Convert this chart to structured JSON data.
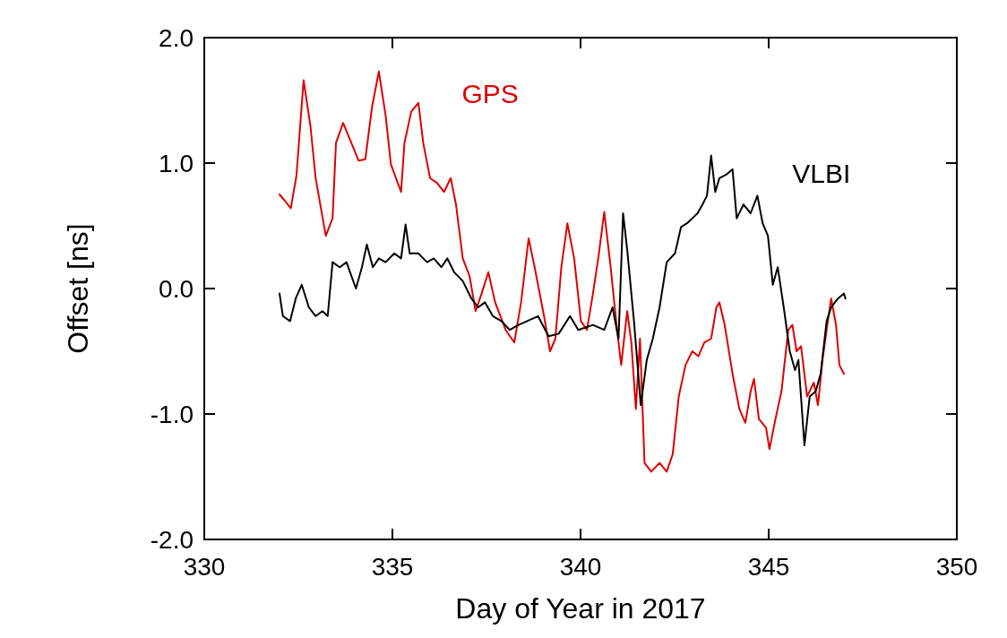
{
  "chart_data": {
    "type": "line",
    "xlabel": "Day of Year in 2017",
    "ylabel": "Offset [ns]",
    "xlim": [
      330,
      350
    ],
    "xticks": [
      330,
      335,
      340,
      345,
      350
    ],
    "ylim": [
      -2,
      2
    ],
    "yticks": [
      {
        "value": -2,
        "label": "-2.0"
      },
      {
        "value": -1,
        "label": "-1.0"
      },
      {
        "value": 0,
        "label": "0.0"
      },
      {
        "value": 1,
        "label": "1.0"
      },
      {
        "value": 2,
        "label": "2.0"
      }
    ],
    "grid": false,
    "line_style": "solid",
    "marker": "none",
    "series": [
      {
        "name": "GPS",
        "color": "#dd0000",
        "x": [
          332.0,
          332.14,
          332.3,
          332.45,
          332.64,
          332.82,
          332.96,
          333.23,
          333.41,
          333.5,
          333.69,
          334.1,
          334.28,
          334.46,
          334.64,
          334.82,
          334.96,
          335.23,
          335.32,
          335.5,
          335.69,
          335.82,
          336.0,
          336.19,
          336.37,
          336.55,
          336.69,
          336.87,
          337.05,
          337.21,
          337.37,
          337.55,
          337.73,
          338.01,
          338.24,
          338.42,
          338.62,
          338.78,
          339.03,
          339.19,
          339.33,
          339.49,
          339.65,
          339.83,
          340.01,
          340.17,
          340.33,
          340.47,
          340.63,
          340.8,
          340.97,
          341.08,
          341.24,
          341.35,
          341.47,
          341.58,
          341.7,
          341.88,
          342.1,
          342.29,
          342.45,
          342.61,
          342.79,
          342.97,
          343.13,
          343.29,
          343.47,
          343.61,
          343.69,
          343.83,
          344.04,
          344.22,
          344.38,
          344.52,
          344.61,
          344.74,
          344.93,
          345.02,
          345.18,
          345.34,
          345.52,
          345.63,
          345.74,
          345.86,
          346.02,
          346.2,
          346.31,
          346.43,
          346.54,
          346.66,
          346.79,
          346.88,
          347.0
        ],
        "values": [
          0.75,
          0.7,
          0.64,
          0.9,
          1.66,
          1.3,
          0.88,
          0.42,
          0.56,
          1.16,
          1.32,
          1.02,
          1.03,
          1.45,
          1.73,
          1.38,
          0.99,
          0.77,
          1.16,
          1.41,
          1.48,
          1.16,
          0.88,
          0.84,
          0.77,
          0.88,
          0.67,
          0.24,
          0.1,
          -0.18,
          -0.04,
          0.13,
          -0.11,
          -0.33,
          -0.43,
          -0.11,
          0.4,
          0.17,
          -0.22,
          -0.5,
          -0.4,
          0.17,
          0.52,
          0.24,
          -0.26,
          -0.33,
          -0.04,
          0.24,
          0.61,
          0.17,
          -0.33,
          -0.61,
          -0.18,
          -0.43,
          -0.96,
          -0.4,
          -1.39,
          -1.46,
          -1.39,
          -1.46,
          -1.32,
          -0.86,
          -0.61,
          -0.5,
          -0.54,
          -0.43,
          -0.4,
          -0.15,
          -0.11,
          -0.29,
          -0.68,
          -0.96,
          -1.07,
          -0.82,
          -0.72,
          -1.04,
          -1.11,
          -1.28,
          -1.04,
          -0.82,
          -0.33,
          -0.29,
          -0.5,
          -0.46,
          -0.86,
          -0.75,
          -0.93,
          -0.57,
          -0.33,
          -0.08,
          -0.29,
          -0.61,
          -0.68
        ]
      },
      {
        "name": "VLBI",
        "color": "#000000",
        "x": [
          332.0,
          332.09,
          332.28,
          332.43,
          332.59,
          332.78,
          332.96,
          333.14,
          333.28,
          333.41,
          333.6,
          333.78,
          334.03,
          334.19,
          334.32,
          334.48,
          334.64,
          334.82,
          335.05,
          335.23,
          335.35,
          335.46,
          335.69,
          335.92,
          336.1,
          336.3,
          336.46,
          336.64,
          336.87,
          337.1,
          337.28,
          337.46,
          337.67,
          337.9,
          338.12,
          338.35,
          338.58,
          338.87,
          339.15,
          339.42,
          339.72,
          339.94,
          340.33,
          340.63,
          340.85,
          341.01,
          341.13,
          341.24,
          341.42,
          341.6,
          341.76,
          341.92,
          342.1,
          342.29,
          342.51,
          342.67,
          342.83,
          342.97,
          343.11,
          343.24,
          343.36,
          343.47,
          343.58,
          343.69,
          343.88,
          344.04,
          344.15,
          344.33,
          344.52,
          344.7,
          344.84,
          344.98,
          345.11,
          345.24,
          345.4,
          345.56,
          345.7,
          345.79,
          345.95,
          346.09,
          346.25,
          346.38,
          346.54,
          346.66,
          346.84,
          347.0,
          347.04
        ],
        "values": [
          -0.04,
          -0.22,
          -0.26,
          -0.08,
          0.03,
          -0.15,
          -0.22,
          -0.18,
          -0.22,
          0.21,
          0.17,
          0.21,
          0.0,
          0.17,
          0.35,
          0.17,
          0.24,
          0.21,
          0.28,
          0.24,
          0.51,
          0.28,
          0.28,
          0.21,
          0.24,
          0.17,
          0.24,
          0.13,
          0.06,
          -0.08,
          -0.15,
          -0.11,
          -0.22,
          -0.26,
          -0.33,
          -0.29,
          -0.26,
          -0.22,
          -0.38,
          -0.36,
          -0.22,
          -0.33,
          -0.29,
          -0.33,
          -0.15,
          -0.4,
          0.6,
          0.31,
          -0.26,
          -0.93,
          -0.57,
          -0.4,
          -0.15,
          0.21,
          0.28,
          0.49,
          0.52,
          0.56,
          0.6,
          0.67,
          0.74,
          1.06,
          0.77,
          0.88,
          0.91,
          0.95,
          0.56,
          0.67,
          0.6,
          0.74,
          0.52,
          0.42,
          0.03,
          0.17,
          -0.15,
          -0.5,
          -0.65,
          -0.57,
          -1.25,
          -0.86,
          -0.82,
          -0.68,
          -0.26,
          -0.15,
          -0.08,
          -0.04,
          -0.08
        ]
      }
    ]
  }
}
